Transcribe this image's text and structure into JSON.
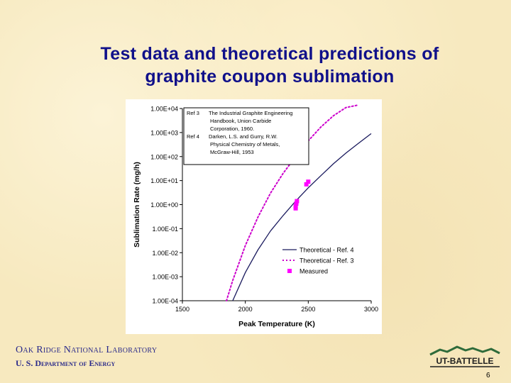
{
  "slide": {
    "title_line1": "Test data and theoretical predictions of",
    "title_line2": "graphite coupon sublimation",
    "footer_org": "Oak Ridge National Laboratory",
    "footer_dept": "U. S. Department of Energy",
    "logo_text": "UT-BATTELLE",
    "page_number": "6"
  },
  "chart_data": {
    "type": "line",
    "xlabel": "Peak Temperature (K)",
    "ylabel": "Sublimation Rate (mg/h)",
    "xlim": [
      1500,
      3000
    ],
    "ylim": [
      0.0001,
      10000
    ],
    "y_scale": "log",
    "x_ticks": [
      1500,
      2000,
      2500,
      3000
    ],
    "x_tick_labels": [
      "1500",
      "2000",
      "2500",
      "3000"
    ],
    "y_ticks": [
      10000,
      1000,
      100,
      10,
      1,
      0.1,
      0.01,
      0.001,
      0.0001
    ],
    "y_tick_labels": [
      "1.00E+04",
      "1.00E+03",
      "1.00E+02",
      "1.00E+01",
      "1.00E+00",
      "1.00E-01",
      "1.00E-02",
      "1.00E-03",
      "1.00E-04"
    ],
    "grid": false,
    "legend_position": "bottom-right",
    "references_box": {
      "position": "top-left",
      "rows": [
        {
          "key": "Ref 3",
          "lines": [
            "The Industrial Graphite Engineering",
            "Handbook, Union Carbide",
            "Corporation, 1960."
          ]
        },
        {
          "key": "Ref 4",
          "lines": [
            "Darken, L.S. and Gurry, R.W.",
            "Physical Chemistry of Metals,",
            "McGraw-Hill, 1953"
          ]
        }
      ]
    },
    "series": [
      {
        "name": "Theoretical - Ref. 4",
        "style": "solid",
        "color": "#1a1a5e",
        "x": [
          1900,
          2000,
          2100,
          2200,
          2300,
          2400,
          2500,
          2600,
          2700,
          2800,
          2900,
          3000
        ],
        "y": [
          0.0001,
          0.0015,
          0.013,
          0.08,
          0.35,
          1.4,
          5.0,
          16,
          50,
          140,
          360,
          900
        ]
      },
      {
        "name": "Theoretical - Ref. 3",
        "style": "dotted",
        "color": "#cc00cc",
        "x": [
          1850,
          1900,
          2000,
          2100,
          2200,
          2300,
          2400,
          2500,
          2600,
          2700,
          2800,
          2900
        ],
        "y": [
          0.0001,
          0.0007,
          0.02,
          0.3,
          3,
          20,
          100,
          450,
          1700,
          5000,
          11000,
          14000
        ]
      },
      {
        "name": "Measured",
        "style": "markers",
        "color": "#ff00ff",
        "x": [
          2400,
          2400,
          2405,
          2410,
          2485,
          2500
        ],
        "y": [
          0.7,
          0.85,
          1.1,
          1.4,
          7,
          9
        ]
      }
    ]
  }
}
